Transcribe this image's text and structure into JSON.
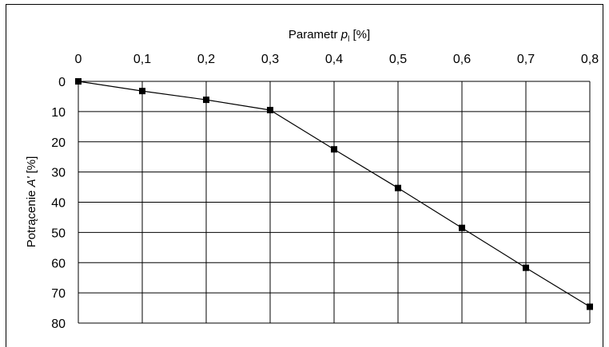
{
  "chart_data": {
    "type": "line",
    "xlabel": "Parametr p_l [%]",
    "xlabel_main": "Parametr ",
    "xlabel_var": "p",
    "xlabel_sub": "l",
    "xlabel_unit": " [%]",
    "ylabel_main": "Potrącenie ",
    "ylabel_var": "A'",
    "ylabel_unit": " [%]",
    "x": [
      0,
      0.1,
      0.2,
      0.3,
      0.4,
      0.5,
      0.6,
      0.7,
      0.8
    ],
    "x_tick_labels": [
      "0",
      "0,1",
      "0,2",
      "0,3",
      "0,4",
      "0,5",
      "0,6",
      "0,7",
      "0,8"
    ],
    "y_tick_labels": [
      "0",
      "10",
      "20",
      "30",
      "40",
      "50",
      "60",
      "70",
      "80"
    ],
    "y_ticks": [
      0,
      10,
      20,
      30,
      40,
      50,
      60,
      70,
      80
    ],
    "series": [
      {
        "values": [
          0,
          3.2,
          6.1,
          9.5,
          22.5,
          35.3,
          48.5,
          61.7,
          74.6
        ]
      }
    ],
    "xlim": [
      0,
      0.8
    ],
    "ylim": [
      0,
      80
    ],
    "y_inverted": true,
    "x_axis_position": "top",
    "grid": true,
    "legend": "none",
    "marker": "square",
    "line_color": "#000000"
  }
}
